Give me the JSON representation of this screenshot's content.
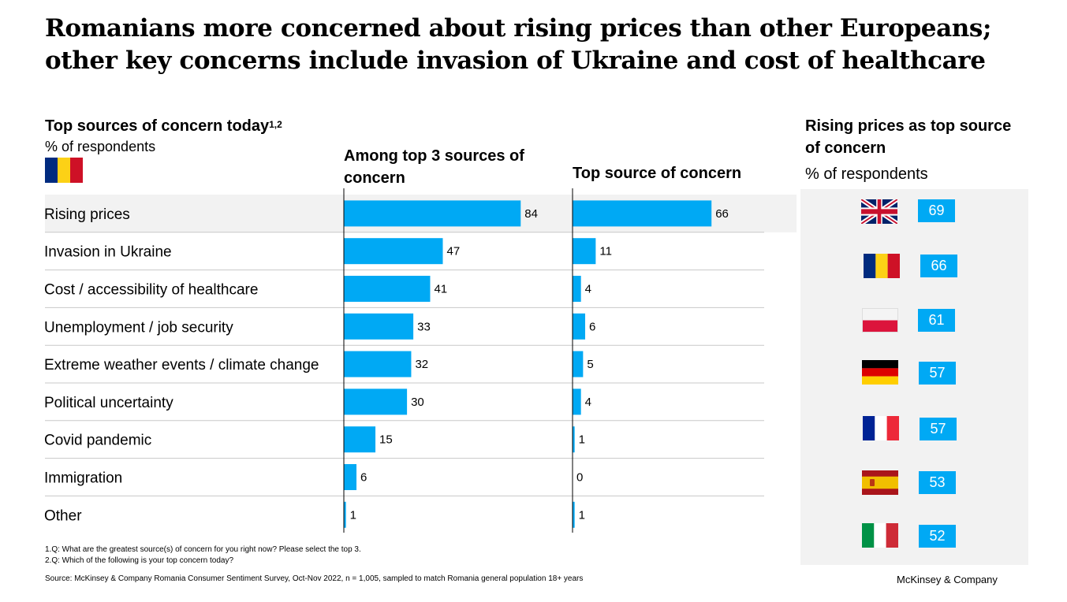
{
  "title": "Romanians more concerned about rising prices than other Europeans; other key concerns include invasion of Ukraine and cost of healthcare",
  "left_section": {
    "heading": "Top sources of concern today",
    "heading_sup": "1,2",
    "unit": "% of respondents",
    "flag": "romania-flag"
  },
  "chart_data": {
    "type": "bar",
    "categories": [
      "Rising prices",
      "Invasion in Ukraine",
      "Cost / accessibility of healthcare",
      "Unemployment / job security",
      "Extreme weather events / climate change",
      "Political uncertainty",
      "Covid pandemic",
      "Immigration",
      "Other"
    ],
    "series": [
      {
        "name": "Among top 3 sources of concern",
        "values": [
          84,
          47,
          41,
          33,
          32,
          30,
          15,
          6,
          1
        ]
      },
      {
        "name": "Top source of concern",
        "values": [
          66,
          11,
          4,
          6,
          5,
          4,
          1,
          0,
          1
        ]
      }
    ],
    "highlight_category": "Rising prices",
    "bar_color": "#00a9f4"
  },
  "side_panel": {
    "title": "Rising prices as top source of concern",
    "unit": "% of respondents",
    "countries": [
      {
        "flag": "uk-flag",
        "value": "69"
      },
      {
        "flag": "romania-flag",
        "value": "66"
      },
      {
        "flag": "poland-flag",
        "value": "61"
      },
      {
        "flag": "germany-flag",
        "value": "57"
      },
      {
        "flag": "france-flag",
        "value": "57"
      },
      {
        "flag": "spain-flag",
        "value": "53"
      },
      {
        "flag": "italy-flag",
        "value": "52"
      }
    ]
  },
  "footnotes": [
    "1.Q: What are the greatest source(s) of concern for you right now? Please select the top 3.",
    "2.Q: Which of the following is your top concern today?"
  ],
  "source": "Source: McKinsey & Company Romania Consumer Sentiment Survey, Oct-Nov 2022, n = 1,005, sampled to match Romania general population 18+ years",
  "brand": "McKinsey & Company"
}
